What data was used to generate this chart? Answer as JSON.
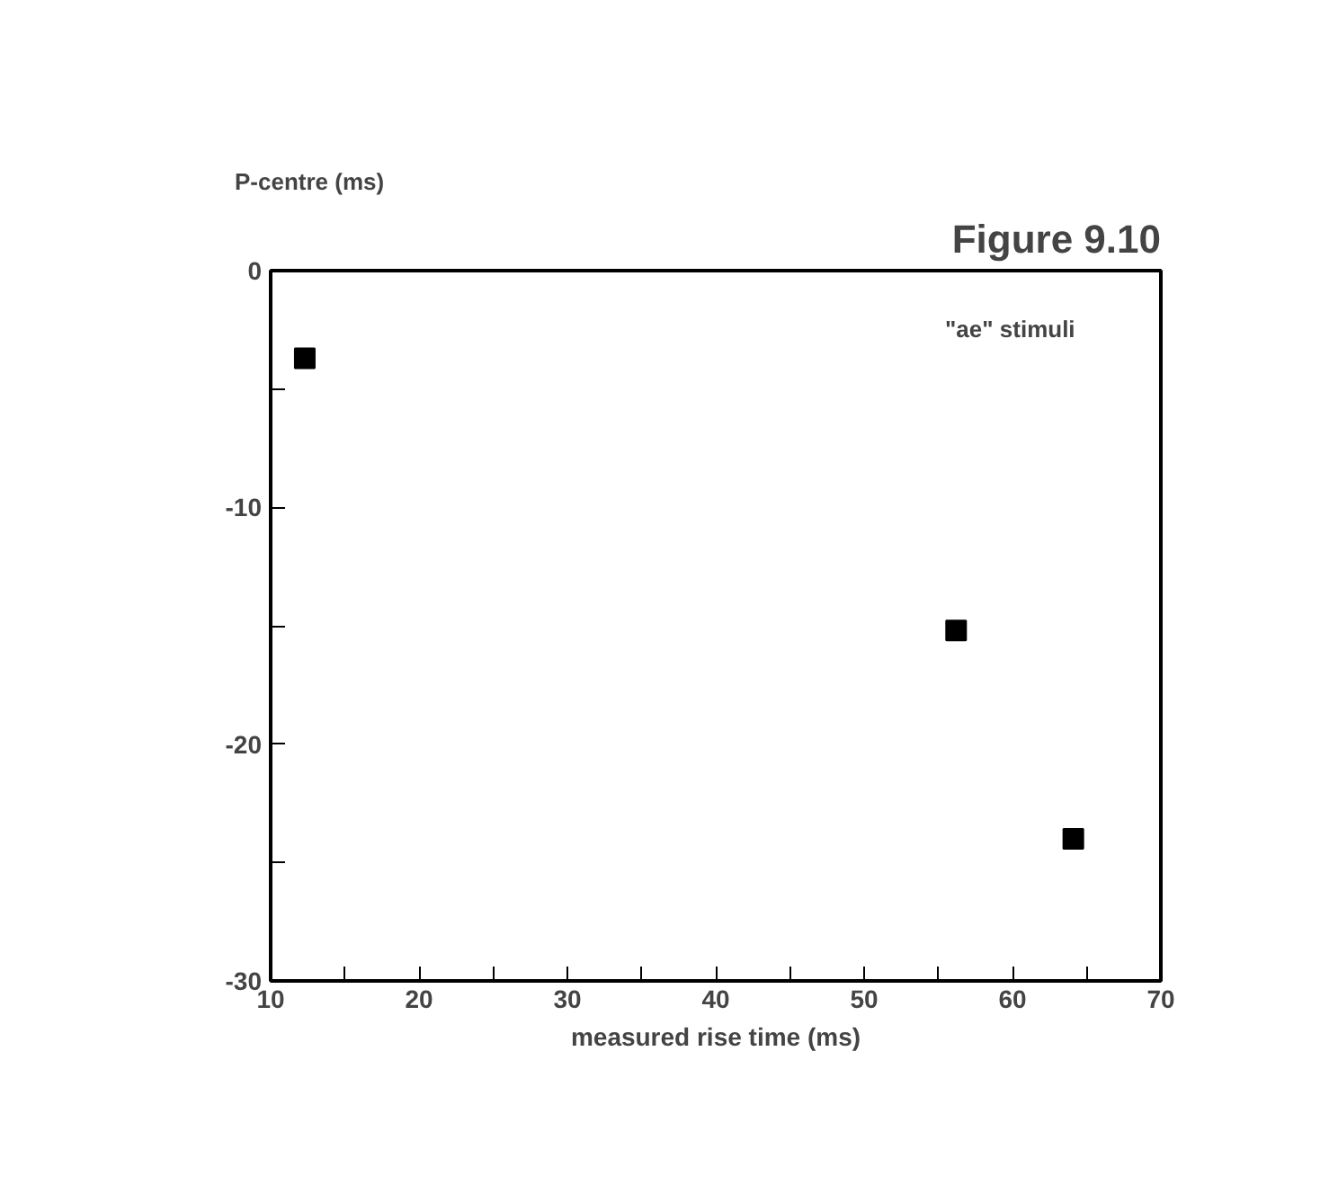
{
  "chart_data": {
    "type": "scatter",
    "title": "Figure 9.10",
    "ylabel": "P-centre (ms)",
    "xlabel": "measured rise time (ms)",
    "annotations": [
      "\"ae\" stimuli"
    ],
    "x": [
      12.3,
      56.2,
      64.1
    ],
    "values": [
      -3.7,
      -15.2,
      -24.0
    ],
    "color": "#000000",
    "marker": "square",
    "xlim": [
      10,
      70
    ],
    "ylim": [
      -30,
      0
    ],
    "xticks": [
      10,
      {
        "value": 15,
        "label": null
      },
      20,
      {
        "value": 25,
        "label": null
      },
      30,
      {
        "value": 35,
        "label": null
      },
      40,
      {
        "value": 45,
        "label": null
      },
      50,
      {
        "value": 55,
        "label": null
      },
      60,
      {
        "value": 65,
        "label": null
      },
      70
    ],
    "yticks": [
      0,
      {
        "value": -5,
        "label": null
      },
      -10,
      {
        "value": -15,
        "label": null
      },
      -20,
      {
        "value": -25,
        "label": null
      },
      -30
    ],
    "grid": false
  }
}
